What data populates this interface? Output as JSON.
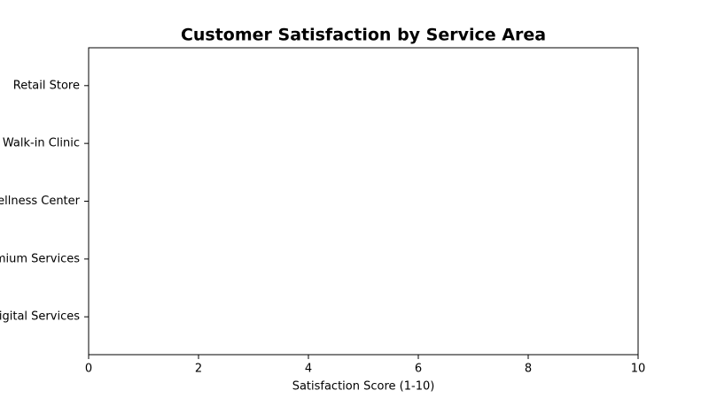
{
  "chart_data": {
    "type": "barh",
    "title": "Customer Satisfaction by Service Area",
    "categories": [
      "Retail Store",
      "Walk-in Clinic",
      "Wellness Center",
      "Premium Services",
      "Digital Services"
    ],
    "xlabel": "Satisfaction Score (1-10)",
    "xlim": [
      0,
      10
    ],
    "xticks": [
      0,
      2,
      4,
      6,
      8,
      10
    ]
  }
}
